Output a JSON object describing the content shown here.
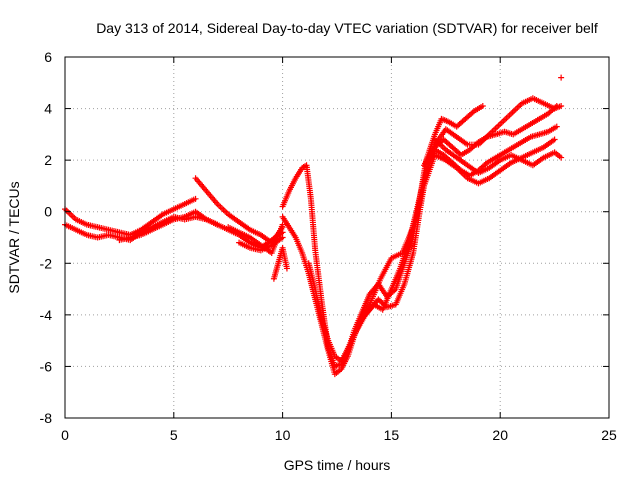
{
  "chart_data": {
    "type": "scatter",
    "title": "Day 313 of 2014, Sidereal Day-to-day VTEC variation (SDTVAR) for receiver belf",
    "xlabel": "GPS time / hours",
    "ylabel": "SDTVAR / TECUs",
    "xlim": [
      0,
      25
    ],
    "ylim": [
      -8,
      6
    ],
    "x_ticks": [
      0,
      5,
      10,
      15,
      20,
      25
    ],
    "y_ticks": [
      -8,
      -6,
      -4,
      -2,
      0,
      2,
      4,
      6
    ],
    "x_tick_labels": [
      "0",
      "5",
      "10",
      "15",
      "20",
      "25"
    ],
    "y_tick_labels": [
      "-8",
      "-6",
      "-4",
      "-2",
      "0",
      "2",
      "4",
      "6"
    ],
    "grid": true,
    "marker": "+",
    "color": "#ff0000",
    "series": [
      {
        "name": "",
        "tracks": [
          {
            "x": [
              0,
              0.5,
              1,
              1.5,
              2,
              2.5,
              3,
              3.5,
              4,
              4.5,
              5,
              5.5,
              6,
              6.5,
              7
            ],
            "y": [
              -0.5,
              -0.7,
              -0.9,
              -1.0,
              -0.9,
              -1.0,
              -1.1,
              -0.8,
              -0.6,
              -0.4,
              -0.2,
              -0.3,
              -0.2,
              -0.3,
              -0.5
            ]
          },
          {
            "x": [
              0,
              0.5,
              1,
              1.5,
              2,
              2.5,
              3,
              3.5,
              4,
              4.5,
              5,
              5.5,
              6
            ],
            "y": [
              0.1,
              -0.3,
              -0.5,
              -0.6,
              -0.7,
              -0.8,
              -0.9,
              -0.7,
              -0.4,
              -0.1,
              0.1,
              0.3,
              0.5
            ]
          },
          {
            "x": [
              2.5,
              3,
              3.5,
              4,
              4.5,
              5,
              5.5,
              6,
              6.5,
              7,
              7.5,
              8,
              8.5,
              9,
              9.5,
              10
            ],
            "y": [
              -1.1,
              -1.0,
              -0.9,
              -0.7,
              -0.5,
              -0.3,
              -0.2,
              0.0,
              -0.3,
              -0.5,
              -0.7,
              -0.9,
              -1.2,
              -1.4,
              -1.1,
              -0.8
            ]
          },
          {
            "x": [
              6,
              6.5,
              7,
              7.5,
              8,
              8.5,
              9,
              9.5,
              10
            ],
            "y": [
              1.3,
              0.8,
              0.3,
              -0.1,
              -0.4,
              -0.7,
              -0.9,
              -1.2,
              -0.6
            ]
          },
          {
            "x": [
              7.5,
              8,
              8.5,
              9,
              9.5,
              10
            ],
            "y": [
              -0.6,
              -0.8,
              -1.0,
              -1.3,
              -1.6,
              -0.5
            ]
          },
          {
            "x": [
              8,
              8.5,
              9,
              9.5,
              10
            ],
            "y": [
              -1.2,
              -1.4,
              -1.5,
              -1.3,
              -1.0
            ]
          },
          {
            "x": [
              9.6,
              9.8,
              10,
              10.2
            ],
            "y": [
              -2.6,
              -2.0,
              -1.4,
              -2.2
            ]
          },
          {
            "x": [
              10,
              10.3,
              10.6,
              10.9,
              11.1,
              11.3,
              11.5,
              11.8,
              12.1,
              12.4,
              12.7,
              13,
              13.3,
              13.6,
              14,
              14.4,
              14.8,
              15.2,
              15.6,
              16,
              16.3,
              16.6,
              17,
              17.3,
              17.6,
              18,
              18.4,
              18.8,
              19.2
            ],
            "y": [
              0.2,
              0.8,
              1.3,
              1.7,
              1.8,
              0.5,
              -1.5,
              -3.5,
              -5.3,
              -6.0,
              -5.9,
              -5.4,
              -4.6,
              -4.0,
              -3.2,
              -2.8,
              -3.3,
              -3.0,
              -2.0,
              -1.0,
              0.5,
              2.0,
              3.0,
              3.6,
              3.5,
              3.3,
              3.6,
              3.9,
              4.1
            ]
          },
          {
            "x": [
              10,
              10.3,
              10.6,
              10.9,
              11.2,
              11.5,
              11.8,
              12.1,
              12.4,
              12.7,
              13,
              13.3,
              13.6,
              14,
              14.4,
              14.8,
              15.2,
              15.6,
              16,
              16.3,
              16.6,
              17,
              17.4,
              17.8,
              18.2,
              18.6,
              19,
              19.4,
              19.8,
              20.2,
              20.6,
              21,
              21.4,
              21.8,
              22.2,
              22.6
            ],
            "y": [
              -0.2,
              -0.6,
              -1.0,
              -1.6,
              -2.4,
              -3.4,
              -4.4,
              -5.4,
              -6.3,
              -6.1,
              -5.6,
              -4.8,
              -4.2,
              -3.8,
              -3.4,
              -3.7,
              -3.6,
              -2.8,
              -1.6,
              0.0,
              1.5,
              2.5,
              2.8,
              2.5,
              2.2,
              2.4,
              2.7,
              2.9,
              3.0,
              3.1,
              3.0,
              3.2,
              3.4,
              3.6,
              3.8,
              4.1
            ]
          },
          {
            "x": [
              11.2,
              11.5,
              11.8,
              12.1,
              12.4,
              12.7,
              13,
              13.4,
              13.8,
              14.2,
              14.6,
              15,
              15.4,
              15.8,
              16.2,
              16.6,
              17,
              17.4,
              17.8,
              18.2,
              18.6,
              19,
              19.4,
              19.8,
              20.2,
              20.6,
              21,
              21.4,
              21.8,
              22.2,
              22.6
            ],
            "y": [
              -2.0,
              -3.0,
              -4.2,
              -5.0,
              -5.6,
              -5.8,
              -5.3,
              -4.6,
              -4.0,
              -3.6,
              -3.8,
              -3.0,
              -2.2,
              -1.2,
              0.2,
              1.6,
              2.4,
              2.2,
              1.9,
              1.6,
              1.4,
              1.6,
              1.9,
              2.1,
              2.3,
              2.5,
              2.7,
              2.9,
              3.0,
              3.1,
              3.3
            ]
          },
          {
            "x": [
              13.5,
              14,
              14.5,
              15,
              15.5,
              16,
              16.5,
              17,
              17.5,
              18,
              18.5,
              19,
              19.5,
              20,
              20.5,
              21,
              21.5,
              22,
              22.5
            ],
            "y": [
              -4.4,
              -3.6,
              -2.6,
              -1.8,
              -1.6,
              -0.6,
              1.0,
              2.2,
              2.0,
              1.7,
              1.3,
              1.1,
              1.3,
              1.6,
              1.9,
              2.1,
              2.3,
              2.5,
              2.8
            ]
          },
          {
            "x": [
              16.5,
              17,
              17.5,
              18,
              18.5,
              19,
              19.5,
              20,
              20.5,
              21,
              21.5,
              22,
              22.5,
              22.8
            ],
            "y": [
              1.8,
              2.6,
              3.2,
              2.9,
              2.6,
              2.6,
              3.0,
              3.4,
              3.8,
              4.2,
              4.4,
              4.2,
              4.0,
              4.1
            ]
          },
          {
            "x": [
              17,
              17.5,
              18,
              18.5,
              19,
              19.5,
              20,
              20.5,
              21,
              21.5,
              22,
              22.5,
              22.8
            ],
            "y": [
              2.8,
              2.4,
              2.1,
              1.8,
              1.5,
              1.7,
              2.0,
              2.2,
              2.0,
              1.8,
              2.1,
              2.3,
              2.1
            ]
          },
          {
            "x": [
              22.8
            ],
            "y": [
              5.2
            ]
          }
        ]
      }
    ]
  }
}
